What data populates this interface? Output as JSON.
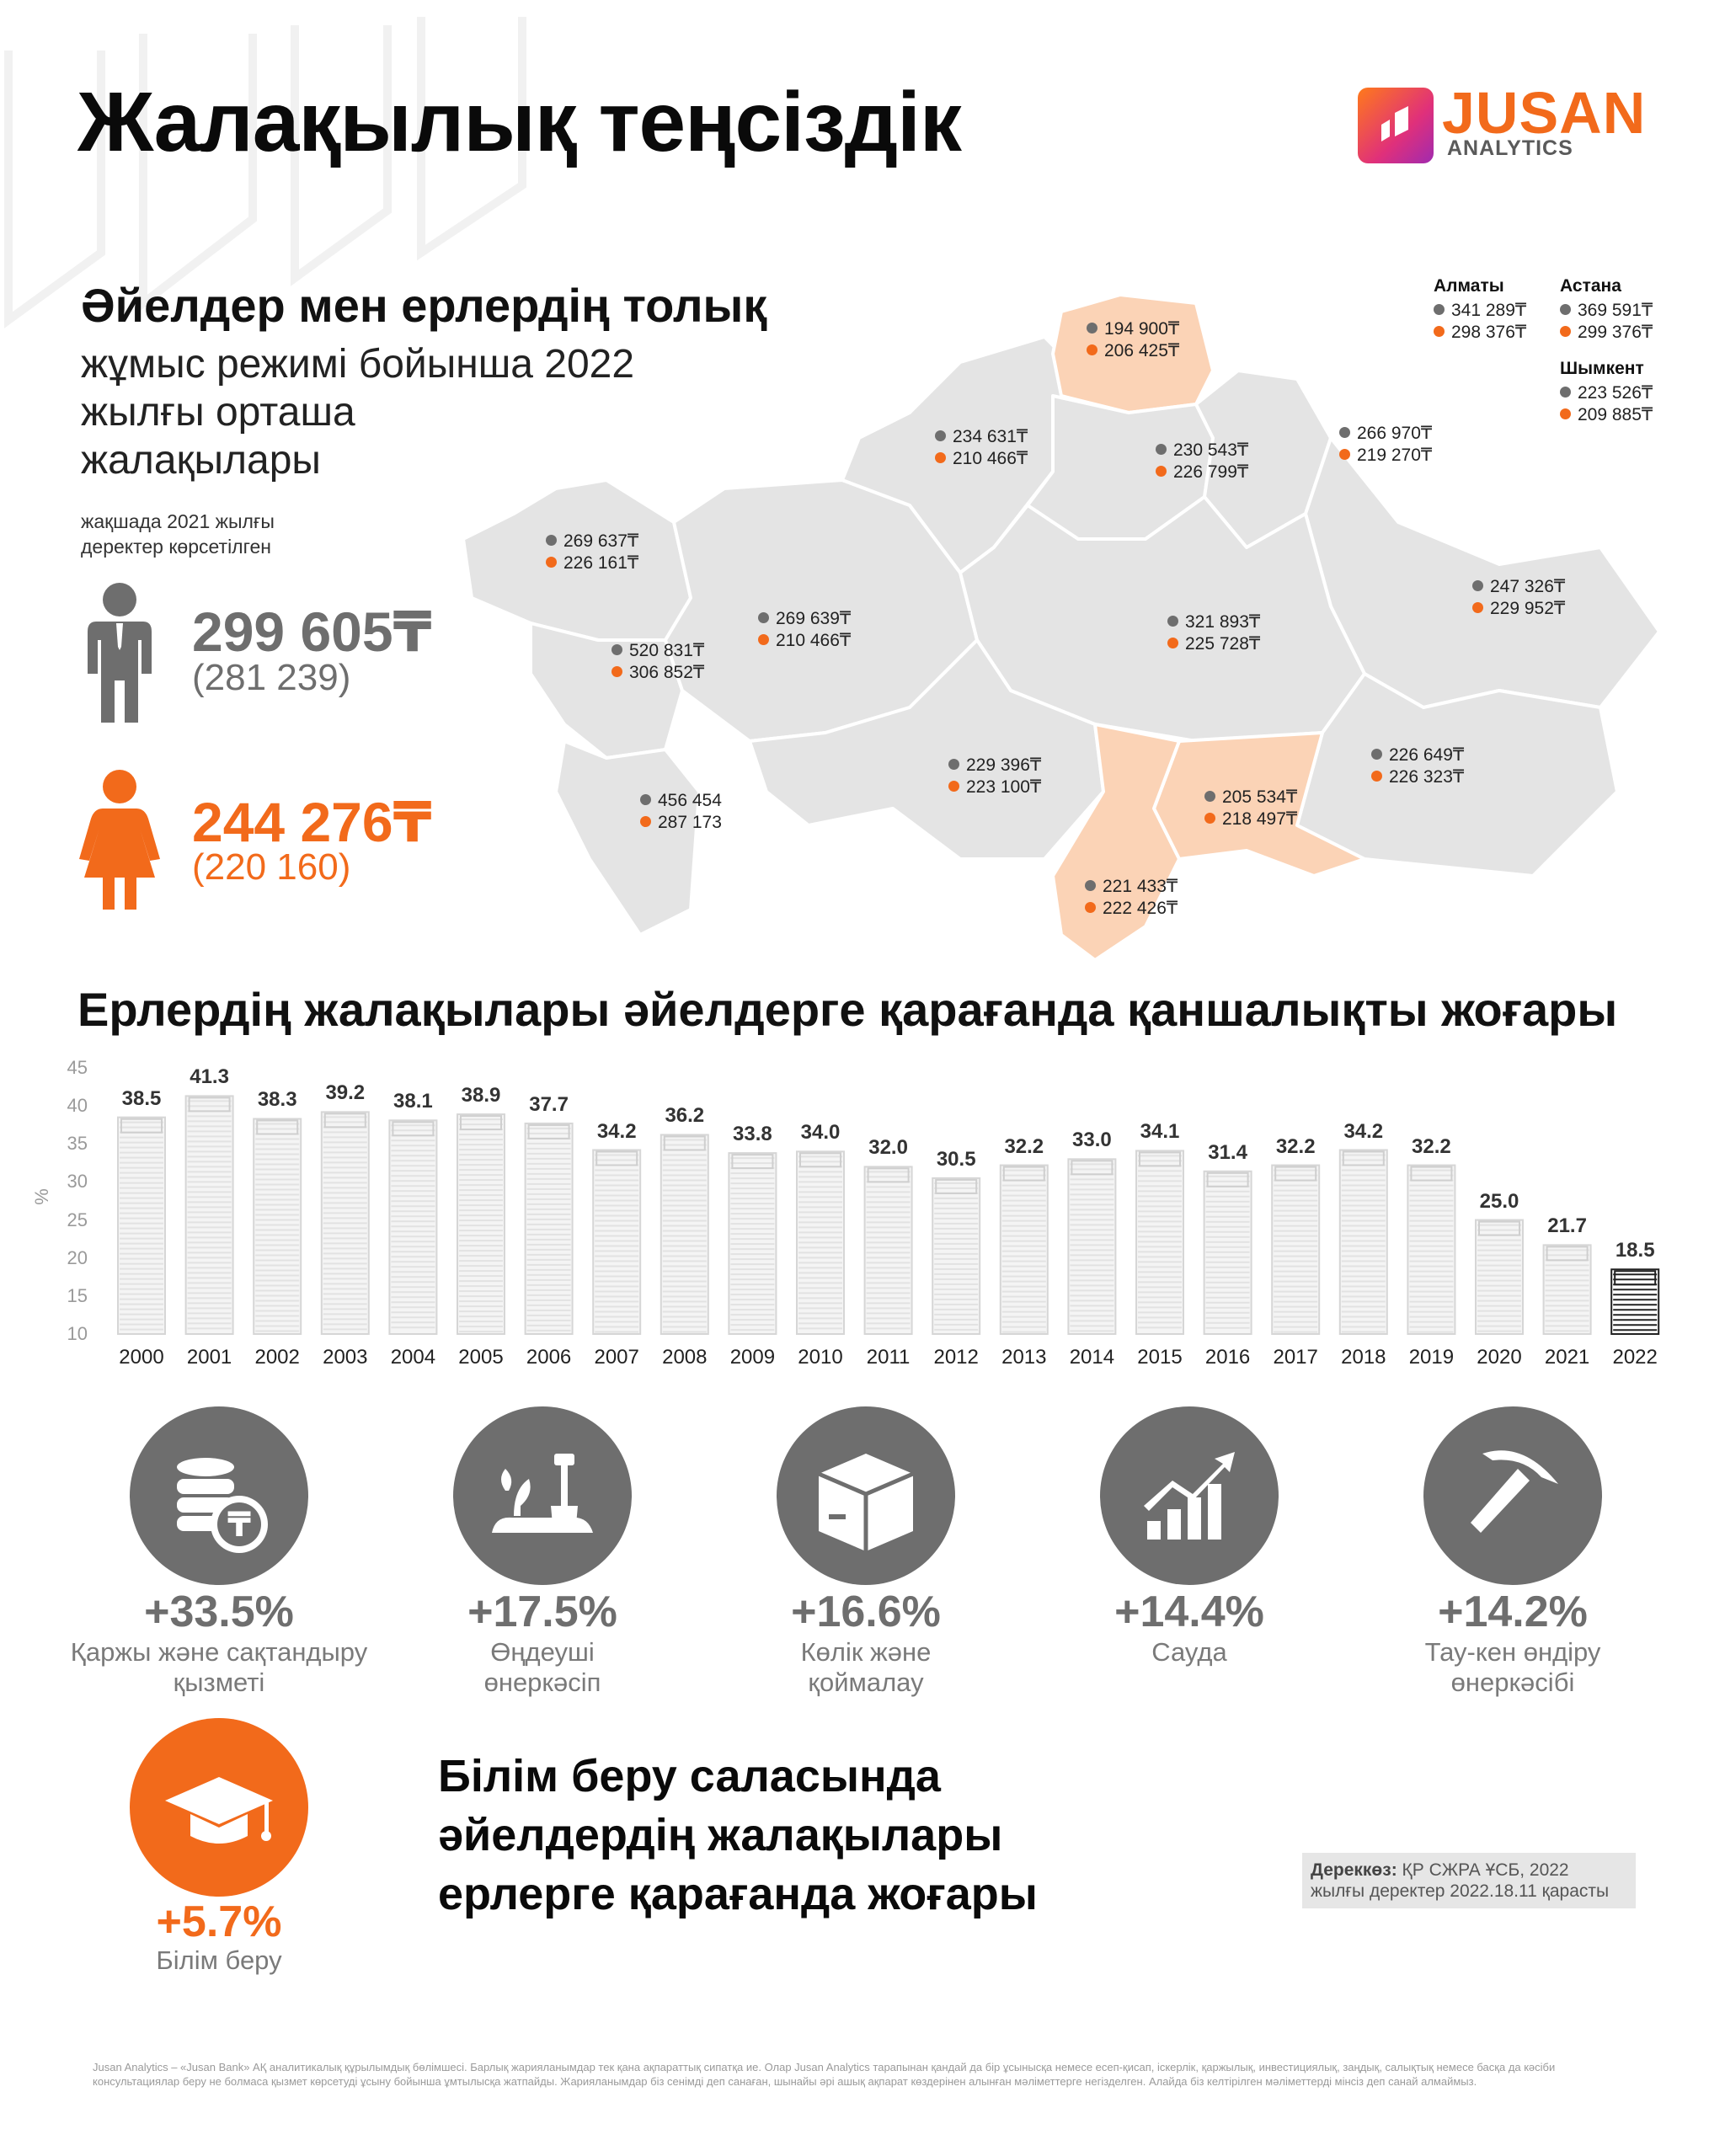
{
  "title": "Жалақылық теңсіздік",
  "logo": {
    "brand": "JUSAN",
    "sub": "ANALYTICS"
  },
  "subheading": "Әйелдер мен ерлердің толық",
  "sub_lines": [
    "жұмыс режимі бойынша 2022",
    "жылғы орташа",
    "жалақылары"
  ],
  "note_lines": [
    "жақшада 2021 жылғы",
    "деректер көрсетілген"
  ],
  "men": {
    "value": "299 605₸",
    "prev": "(281 239)"
  },
  "women": {
    "value": "244 276₸",
    "prev": "(220 160)"
  },
  "cities": [
    {
      "name": "Алматы",
      "men": "341 289₸",
      "women": "298 376₸"
    },
    {
      "name": "Астана",
      "men": "369 591₸",
      "women": "299 376₸"
    },
    {
      "name": "Шымкент",
      "men": "223 526₸",
      "women": "209 885₸"
    }
  ],
  "regions": [
    {
      "men": "194 900₸",
      "women": "206 425₸"
    },
    {
      "men": "234 631₸",
      "women": "210 466₸"
    },
    {
      "men": "230 543₸",
      "women": "226 799₸"
    },
    {
      "men": "266 970₸",
      "women": "219 270₸"
    },
    {
      "men": "269 637₸",
      "women": "226 161₸"
    },
    {
      "men": "269 639₸",
      "women": "210 466₸"
    },
    {
      "men": "321 893₸",
      "women": "225 728₸"
    },
    {
      "men": "247 326₸",
      "women": "229 952₸"
    },
    {
      "men": "520 831₸",
      "women": "306 852₸"
    },
    {
      "men": "456 454",
      "women": "287 173"
    },
    {
      "men": "229 396₸",
      "women": "223 100₸"
    },
    {
      "men": "226 649₸",
      "women": "226 323₸"
    },
    {
      "men": "205 534₸",
      "women": "218 497₸"
    },
    {
      "men": "221 433₸",
      "women": "222 426₸"
    }
  ],
  "section2_title": "Ерлердің жалақылары әйелдерге қарағанда қаншалықты жоғары",
  "chart_data": {
    "type": "bar",
    "ylabel": "%",
    "ylim": [
      10,
      45
    ],
    "yticks": [
      "45",
      "40",
      "35",
      "30",
      "25",
      "20",
      "15",
      "10"
    ],
    "categories": [
      "2000",
      "2001",
      "2002",
      "2003",
      "2004",
      "2005",
      "2006",
      "2007",
      "2008",
      "2009",
      "2010",
      "2011",
      "2012",
      "2013",
      "2014",
      "2015",
      "2016",
      "2017",
      "2018",
      "2019",
      "2020",
      "2021",
      "2022"
    ],
    "values": [
      38.5,
      41.3,
      38.3,
      39.2,
      38.1,
      38.9,
      37.7,
      34.2,
      36.2,
      33.8,
      34.0,
      32.0,
      30.5,
      32.2,
      33.0,
      34.1,
      31.4,
      32.2,
      34.2,
      32.2,
      25.0,
      21.7,
      18.5
    ],
    "value_labels": [
      "38.5",
      "41.3",
      "38.3",
      "39.2",
      "38.1",
      "38.9",
      "37.7",
      "34.2",
      "36.2",
      "33.8",
      "34.0",
      "32.0",
      "30.5",
      "32.2",
      "33.0",
      "34.1",
      "31.4",
      "32.2",
      "34.2",
      "32.2",
      "25.0",
      "21.7",
      "18.5"
    ],
    "colors": {
      "bars": "#e2e2e2",
      "highlight": "#222222"
    }
  },
  "industries": [
    {
      "value": "+33.5%",
      "label_lines": [
        "Қаржы және сақтандыру",
        "қызметі"
      ],
      "icon": "coins-icon"
    },
    {
      "value": "+17.5%",
      "label_lines": [
        "Өңдеуші",
        "өнеркәсіп"
      ],
      "icon": "plant-shovel-icon"
    },
    {
      "value": "+16.6%",
      "label_lines": [
        "Көлік және",
        "қоймалау"
      ],
      "icon": "box-icon"
    },
    {
      "value": "+14.4%",
      "label_lines": [
        "Сауда",
        ""
      ],
      "icon": "growth-chart-icon"
    },
    {
      "value": "+14.2%",
      "label_lines": [
        "Тау-кен өндіру",
        "өнеркәсібі"
      ],
      "icon": "pickaxe-icon"
    }
  ],
  "education": {
    "value": "+5.7%",
    "label": "Білім беру",
    "icon": "graduation-cap-icon"
  },
  "edu_heading_lines": [
    "Білім беру саласында",
    "әйелдердің жалақылары",
    "ерлерге қарағанда жоғары"
  ],
  "source": {
    "label": "Дереккөз:",
    "text1": " ҚР СЖРА ҰСБ, 2022",
    "text2": "жылғы деректер 2022.18.11 қарасты"
  },
  "footer": "Jusan Analytics – «Jusan Bank» АҚ аналитикалық құрылымдық бөлімшесі. Барлық жарияланымдар тек қана ақпараттық сипатқа ие. Олар Jusan Analytics тарапынан қандай да бір ұсынысқа немесе есеп-қисап, іскерлік, қаржылық, инвестициялық, заңдық, салықтық немесе басқа да кәсіби консультациялар беру не болмаса қызмет көрсетуді ұсыну бойынша ұмтылысқа жатпайды. Жарияланымдар біз сенімді деп санаған, шынайы әрі ашық ақпарат көздерінен алынған мәліметтерге негізделген. Алайда біз келтірілген мәліметтерді мінсіз деп санай алмаймыз.",
  "colors": {
    "accent": "#f26a1b",
    "gray": "#6e6e6e",
    "map": "#e4e4e4",
    "map_highlight": "#fbd3b6"
  }
}
